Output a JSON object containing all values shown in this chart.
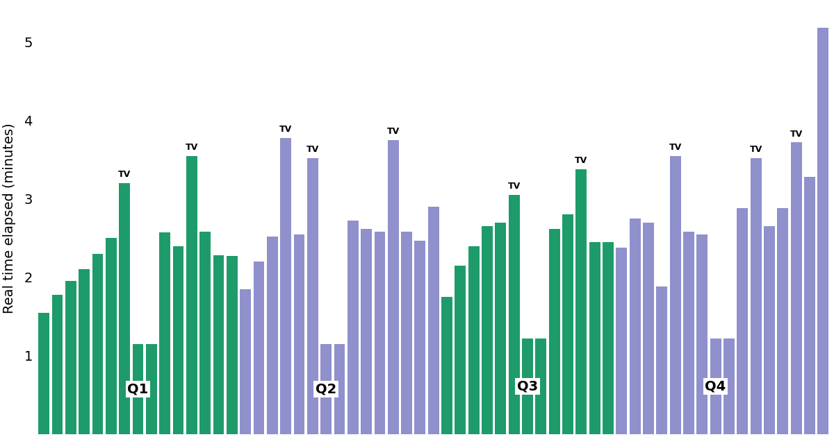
{
  "ylabel": "Real time elapsed (minutes)",
  "ylim": [
    0,
    5.5
  ],
  "yticks": [
    1,
    2,
    3,
    4,
    5
  ],
  "background_color": "#ffffff",
  "green_color": "#1e9b6b",
  "purple_color": "#8f90cc",
  "bar_width": 0.82,
  "label_fontsize": 9,
  "q_fontsize": 14,
  "ylabel_fontsize": 14,
  "ytick_fontsize": 14,
  "bars": [
    {
      "value": 1.55,
      "color": "green",
      "label": null
    },
    {
      "value": 1.78,
      "color": "green",
      "label": null
    },
    {
      "value": 1.95,
      "color": "green",
      "label": null
    },
    {
      "value": 2.1,
      "color": "green",
      "label": null
    },
    {
      "value": 2.3,
      "color": "green",
      "label": null
    },
    {
      "value": 2.5,
      "color": "green",
      "label": null
    },
    {
      "value": 3.2,
      "color": "green",
      "label": "TV"
    },
    {
      "value": 1.15,
      "color": "green",
      "label": "Q1"
    },
    {
      "value": 1.15,
      "color": "green",
      "label": null
    },
    {
      "value": 2.57,
      "color": "green",
      "label": null
    },
    {
      "value": 2.4,
      "color": "green",
      "label": null
    },
    {
      "value": 3.55,
      "color": "green",
      "label": "TV"
    },
    {
      "value": 2.58,
      "color": "green",
      "label": null
    },
    {
      "value": 2.28,
      "color": "green",
      "label": null
    },
    {
      "value": 2.27,
      "color": "green",
      "label": null
    },
    {
      "value": 1.85,
      "color": "purple",
      "label": null
    },
    {
      "value": 2.2,
      "color": "purple",
      "label": null
    },
    {
      "value": 2.52,
      "color": "purple",
      "label": null
    },
    {
      "value": 3.78,
      "color": "purple",
      "label": "TV"
    },
    {
      "value": 2.55,
      "color": "purple",
      "label": null
    },
    {
      "value": 3.52,
      "color": "purple",
      "label": "TV"
    },
    {
      "value": 1.15,
      "color": "purple",
      "label": "Q2"
    },
    {
      "value": 1.15,
      "color": "purple",
      "label": null
    },
    {
      "value": 2.72,
      "color": "purple",
      "label": null
    },
    {
      "value": 2.62,
      "color": "purple",
      "label": null
    },
    {
      "value": 2.58,
      "color": "purple",
      "label": null
    },
    {
      "value": 3.75,
      "color": "purple",
      "label": "TV"
    },
    {
      "value": 2.58,
      "color": "purple",
      "label": null
    },
    {
      "value": 2.47,
      "color": "purple",
      "label": null
    },
    {
      "value": 2.9,
      "color": "purple",
      "label": null
    },
    {
      "value": 1.75,
      "color": "green",
      "label": null
    },
    {
      "value": 2.15,
      "color": "green",
      "label": null
    },
    {
      "value": 2.4,
      "color": "green",
      "label": null
    },
    {
      "value": 2.65,
      "color": "green",
      "label": null
    },
    {
      "value": 2.7,
      "color": "green",
      "label": null
    },
    {
      "value": 3.05,
      "color": "green",
      "label": "TV"
    },
    {
      "value": 1.22,
      "color": "green",
      "label": "Q3"
    },
    {
      "value": 1.22,
      "color": "green",
      "label": null
    },
    {
      "value": 2.62,
      "color": "green",
      "label": null
    },
    {
      "value": 2.8,
      "color": "green",
      "label": null
    },
    {
      "value": 3.38,
      "color": "green",
      "label": "TV"
    },
    {
      "value": 2.45,
      "color": "green",
      "label": null
    },
    {
      "value": 2.45,
      "color": "green",
      "label": null
    },
    {
      "value": 2.38,
      "color": "purple",
      "label": null
    },
    {
      "value": 2.75,
      "color": "purple",
      "label": null
    },
    {
      "value": 2.7,
      "color": "purple",
      "label": null
    },
    {
      "value": 1.88,
      "color": "purple",
      "label": null
    },
    {
      "value": 3.55,
      "color": "purple",
      "label": "TV"
    },
    {
      "value": 2.58,
      "color": "purple",
      "label": null
    },
    {
      "value": 2.55,
      "color": "purple",
      "label": null
    },
    {
      "value": 1.22,
      "color": "purple",
      "label": "Q4"
    },
    {
      "value": 1.22,
      "color": "purple",
      "label": null
    },
    {
      "value": 2.88,
      "color": "purple",
      "label": null
    },
    {
      "value": 3.52,
      "color": "purple",
      "label": "TV"
    },
    {
      "value": 2.65,
      "color": "purple",
      "label": null
    },
    {
      "value": 2.88,
      "color": "purple",
      "label": null
    },
    {
      "value": 3.72,
      "color": "purple",
      "label": "TV"
    },
    {
      "value": 3.28,
      "color": "purple",
      "label": null
    },
    {
      "value": 5.18,
      "color": "purple",
      "label": null
    }
  ]
}
